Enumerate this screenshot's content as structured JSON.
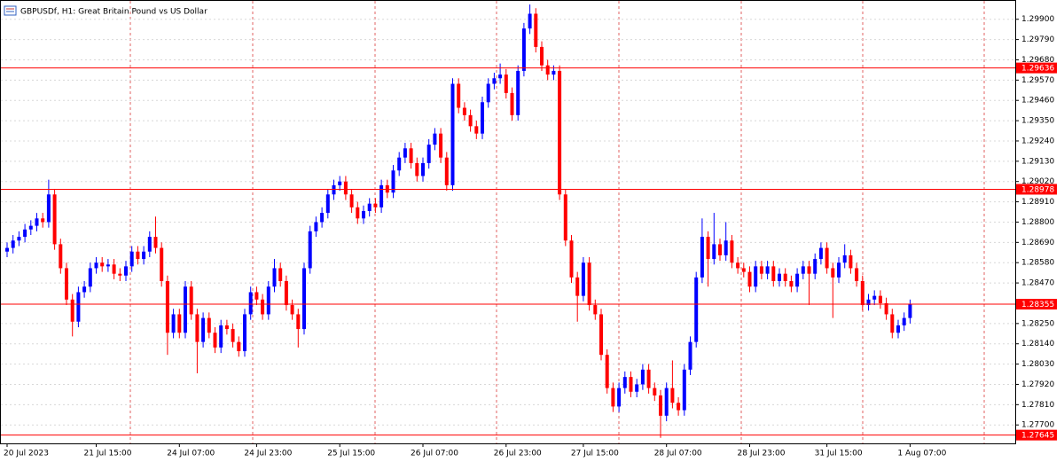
{
  "chart_data": {
    "type": "candlestick",
    "title": "GBPUSDf, H1:  Great Britain Pound vs US Dollar",
    "up_color": "#0000ff",
    "down_color": "#ff0000",
    "level_color": "#ff0000",
    "grid": true,
    "ylim": [
      1.276,
      1.2999
    ],
    "yticks": [
      {
        "value": 1.299,
        "label": "1.29900"
      },
      {
        "value": 1.2979,
        "label": "1.29790"
      },
      {
        "value": 1.2968,
        "label": "1.29680"
      },
      {
        "value": 1.2957,
        "label": "1.29570"
      },
      {
        "value": 1.2946,
        "label": "1.29460"
      },
      {
        "value": 1.2935,
        "label": "1.29350"
      },
      {
        "value": 1.2924,
        "label": "1.29240"
      },
      {
        "value": 1.2913,
        "label": "1.29130"
      },
      {
        "value": 1.2902,
        "label": "1.29020"
      },
      {
        "value": 1.2891,
        "label": "1.28910"
      },
      {
        "value": 1.288,
        "label": "1.28800"
      },
      {
        "value": 1.2869,
        "label": "1.28690"
      },
      {
        "value": 1.2858,
        "label": "1.28580"
      },
      {
        "value": 1.2847,
        "label": "1.28470"
      },
      {
        "value": 1.2825,
        "label": "1.28250"
      },
      {
        "value": 1.2814,
        "label": "1.28140"
      },
      {
        "value": 1.2803,
        "label": "1.28030"
      },
      {
        "value": 1.2792,
        "label": "1.27920"
      },
      {
        "value": 1.2781,
        "label": "1.27810"
      },
      {
        "value": 1.277,
        "label": "1.27700"
      }
    ],
    "levels": [
      1.29636,
      1.28978,
      1.28355,
      1.27645
    ],
    "categories": [
      "20 Jul 2023",
      null,
      null,
      null,
      null,
      null,
      null,
      null,
      null,
      null,
      null,
      null,
      null,
      null,
      null,
      "21 Jul 15:00",
      null,
      null,
      null,
      null,
      null,
      null,
      null,
      null,
      null,
      null,
      null,
      null,
      null,
      "24 Jul 07:00",
      null,
      null,
      null,
      null,
      null,
      null,
      null,
      null,
      null,
      null,
      null,
      null,
      "24 Jul 23:00",
      null,
      null,
      null,
      null,
      null,
      null,
      null,
      null,
      null,
      null,
      null,
      null,
      null,
      "25 Jul 15:00",
      null,
      null,
      null,
      null,
      null,
      null,
      null,
      null,
      null,
      null,
      null,
      null,
      null,
      "26 Jul 07:00",
      null,
      null,
      null,
      null,
      null,
      null,
      null,
      null,
      null,
      null,
      null,
      null,
      null,
      "26 Jul 23:00",
      null,
      null,
      null,
      null,
      null,
      null,
      null,
      null,
      null,
      null,
      null,
      null,
      "27 Jul 15:00",
      null,
      null,
      null,
      null,
      null,
      null,
      null,
      null,
      null,
      null,
      null,
      null,
      null,
      "28 Jul 07:00",
      null,
      null,
      null,
      null,
      null,
      null,
      null,
      null,
      null,
      null,
      null,
      null,
      null,
      "28 Jul 23:00",
      null,
      null,
      null,
      null,
      null,
      null,
      null,
      null,
      null,
      null,
      null,
      null,
      "31 Jul 15:00",
      null,
      null,
      null,
      null,
      null,
      null,
      null,
      null,
      null,
      null,
      null,
      null,
      null,
      "1 Aug 07:00"
    ],
    "open": [
      1.2864,
      1.2866,
      1.287,
      1.2872,
      1.2876,
      1.2878,
      1.2882,
      1.288,
      1.2895,
      1.2868,
      1.2855,
      1.2838,
      1.2826,
      1.2842,
      1.2845,
      1.2855,
      1.2858,
      1.2856,
      1.2857,
      1.2852,
      1.2851,
      1.2856,
      1.2864,
      1.286,
      1.2864,
      1.2872,
      1.2866,
      1.2848,
      1.282,
      1.283,
      1.282,
      1.2845,
      1.283,
      1.2815,
      1.2828,
      1.282,
      1.2812,
      1.2824,
      1.2822,
      1.2815,
      1.281,
      1.283,
      1.2842,
      1.2838,
      1.283,
      1.2845,
      1.2855,
      1.2848,
      1.2835,
      1.283,
      1.2822,
      1.2855,
      1.2875,
      1.288,
      1.2885,
      1.2895,
      1.29,
      1.2902,
      1.2895,
      1.2888,
      1.2882,
      1.2886,
      1.289,
      1.2888,
      1.29,
      1.2896,
      1.2908,
      1.2915,
      1.292,
      1.2912,
      1.2905,
      1.2912,
      1.2922,
      1.2928,
      1.2915,
      1.29,
      1.2955,
      1.2942,
      1.2938,
      1.2932,
      1.2928,
      1.2945,
      1.2955,
      1.2958,
      1.296,
      1.295,
      1.2938,
      1.2962,
      1.2985,
      1.2993,
      1.2975,
      1.2965,
      1.296,
      1.2962,
      1.2895,
      1.287,
      1.285,
      1.284,
      1.2858,
      1.2835,
      1.283,
      1.2808,
      1.279,
      1.278,
      1.279,
      1.2796,
      1.2788,
      1.2792,
      1.28,
      1.279,
      1.2786,
      1.2775,
      1.279,
      1.2782,
      1.2778,
      1.28,
      1.2815,
      1.285,
      1.2872,
      1.286,
      1.2868,
      1.2862,
      1.287,
      1.2858,
      1.2855,
      1.2853,
      1.2845,
      1.2856,
      1.2852,
      1.2856,
      1.2848,
      1.2852,
      1.2848,
      1.2845,
      1.2852,
      1.2856,
      1.2852,
      1.286,
      1.2866,
      1.2855,
      1.285,
      1.2858,
      1.2862,
      1.2855,
      1.2848,
      1.2835,
      1.2838,
      1.284,
      1.2836,
      1.283,
      1.282,
      1.2824,
      1.2828
    ],
    "high": [
      1.2869,
      1.2873,
      1.2875,
      1.2879,
      1.2881,
      1.2885,
      1.2885,
      1.2903,
      1.2898,
      1.2871,
      1.2858,
      1.2841,
      1.2845,
      1.2848,
      1.2858,
      1.2861,
      1.2861,
      1.286,
      1.286,
      1.2855,
      1.2859,
      1.2867,
      1.2867,
      1.2867,
      1.2875,
      1.2883,
      1.2869,
      1.2851,
      1.2833,
      1.2833,
      1.2848,
      1.2848,
      1.2833,
      1.2831,
      1.2831,
      1.2823,
      1.2827,
      1.2827,
      1.2825,
      1.2818,
      1.2833,
      1.2845,
      1.2845,
      1.2841,
      1.2848,
      1.286,
      1.2858,
      1.2851,
      1.2838,
      1.2833,
      1.2858,
      1.2878,
      1.2883,
      1.2888,
      1.2898,
      1.2903,
      1.2905,
      1.2905,
      1.2898,
      1.2891,
      1.2889,
      1.2893,
      1.2893,
      1.2903,
      1.2903,
      1.2911,
      1.2918,
      1.2923,
      1.2923,
      1.2915,
      1.2915,
      1.2925,
      1.2931,
      1.2931,
      1.2918,
      1.2958,
      1.2958,
      1.2945,
      1.2941,
      1.2935,
      1.2948,
      1.2958,
      1.2961,
      1.2966,
      1.2963,
      1.2953,
      1.2965,
      1.2988,
      1.2998,
      1.2996,
      1.2978,
      1.2968,
      1.2965,
      1.2965,
      1.2898,
      1.2873,
      1.2853,
      1.2861,
      1.2861,
      1.2838,
      1.2833,
      1.2811,
      1.2793,
      1.2793,
      1.2799,
      1.2799,
      1.2795,
      1.2803,
      1.2803,
      1.2793,
      1.2789,
      1.2793,
      1.2805,
      1.2785,
      1.2803,
      1.2818,
      1.2853,
      1.2882,
      1.2875,
      1.2885,
      1.2871,
      1.288,
      1.2873,
      1.2861,
      1.2858,
      1.2856,
      1.2859,
      1.2859,
      1.2859,
      1.2859,
      1.2855,
      1.2855,
      1.2851,
      1.2855,
      1.2859,
      1.2859,
      1.2863,
      1.2869,
      1.2869,
      1.2858,
      1.2861,
      1.2868,
      1.2865,
      1.2858,
      1.2851,
      1.2841,
      1.2843,
      1.2843,
      1.2839,
      1.2833,
      1.2827,
      1.2831,
      1.2838
    ],
    "low": [
      1.2861,
      1.2863,
      1.2867,
      1.2869,
      1.2873,
      1.2875,
      1.2877,
      1.2877,
      1.2865,
      1.2852,
      1.2835,
      1.2818,
      1.2823,
      1.2839,
      1.2842,
      1.2852,
      1.2853,
      1.2853,
      1.2849,
      1.2848,
      1.2848,
      1.2853,
      1.2857,
      1.2857,
      1.2861,
      1.2863,
      1.2845,
      1.2808,
      1.2817,
      1.2817,
      1.2817,
      1.2827,
      1.2798,
      1.2812,
      1.2817,
      1.2809,
      1.2809,
      1.2819,
      1.2812,
      1.2807,
      1.2807,
      1.2827,
      1.2835,
      1.2827,
      1.2827,
      1.2842,
      1.2845,
      1.2832,
      1.2827,
      1.2812,
      1.2819,
      1.2852,
      1.2872,
      1.2877,
      1.2882,
      1.2892,
      1.2897,
      1.2892,
      1.2885,
      1.2879,
      1.2879,
      1.2883,
      1.2885,
      1.2885,
      1.2893,
      1.2893,
      1.2905,
      1.2912,
      1.2909,
      1.2902,
      1.2902,
      1.2909,
      1.2919,
      1.2912,
      1.2897,
      1.2897,
      1.2939,
      1.2935,
      1.2929,
      1.2925,
      1.2925,
      1.2942,
      1.2952,
      1.2955,
      1.2947,
      1.2935,
      1.2935,
      1.2959,
      1.2982,
      1.2972,
      1.2962,
      1.2957,
      1.2957,
      1.2892,
      1.2867,
      1.2847,
      1.2826,
      1.2837,
      1.2832,
      1.2827,
      1.2805,
      1.2787,
      1.2777,
      1.2777,
      1.2787,
      1.2785,
      1.2785,
      1.2789,
      1.2787,
      1.2783,
      1.2763,
      1.2772,
      1.2779,
      1.2775,
      1.2775,
      1.2797,
      1.2812,
      1.2847,
      1.2845,
      1.2857,
      1.2859,
      1.2859,
      1.2855,
      1.2852,
      1.285,
      1.2842,
      1.2842,
      1.2849,
      1.2849,
      1.2845,
      1.2845,
      1.2845,
      1.2842,
      1.2842,
      1.2849,
      1.2835,
      1.2849,
      1.2857,
      1.2852,
      1.2828,
      1.2847,
      1.2855,
      1.2852,
      1.2845,
      1.2832,
      1.2832,
      1.2835,
      1.2833,
      1.2827,
      1.2817,
      1.2817,
      1.2821,
      1.2825
    ],
    "close": [
      1.2866,
      1.287,
      1.2872,
      1.2876,
      1.2878,
      1.2882,
      1.288,
      1.2895,
      1.2868,
      1.2855,
      1.2838,
      1.2826,
      1.2842,
      1.2845,
      1.2855,
      1.2858,
      1.2856,
      1.2857,
      1.2852,
      1.2851,
      1.2856,
      1.2864,
      1.286,
      1.2864,
      1.2872,
      1.2866,
      1.2848,
      1.282,
      1.283,
      1.282,
      1.2845,
      1.283,
      1.2815,
      1.2828,
      1.282,
      1.2812,
      1.2824,
      1.2822,
      1.2815,
      1.281,
      1.283,
      1.2842,
      1.2838,
      1.283,
      1.2845,
      1.2855,
      1.2848,
      1.2835,
      1.283,
      1.2822,
      1.2855,
      1.2875,
      1.288,
      1.2885,
      1.2895,
      1.29,
      1.2902,
      1.2895,
      1.2888,
      1.2882,
      1.2886,
      1.289,
      1.2888,
      1.29,
      1.2896,
      1.2908,
      1.2915,
      1.292,
      1.2912,
      1.2905,
      1.2912,
      1.2922,
      1.2928,
      1.2915,
      1.29,
      1.2955,
      1.2942,
      1.2938,
      1.2932,
      1.2928,
      1.2945,
      1.2955,
      1.2958,
      1.296,
      1.295,
      1.2938,
      1.2962,
      1.2985,
      1.2993,
      1.2975,
      1.2965,
      1.296,
      1.2962,
      1.2895,
      1.287,
      1.285,
      1.284,
      1.2858,
      1.2835,
      1.283,
      1.2808,
      1.279,
      1.278,
      1.279,
      1.2796,
      1.2788,
      1.2792,
      1.28,
      1.279,
      1.2786,
      1.2775,
      1.279,
      1.2782,
      1.2778,
      1.28,
      1.2815,
      1.285,
      1.2872,
      1.286,
      1.2868,
      1.2862,
      1.287,
      1.2858,
      1.2855,
      1.2853,
      1.2845,
      1.2856,
      1.2852,
      1.2856,
      1.2848,
      1.2852,
      1.2848,
      1.2845,
      1.2852,
      1.2856,
      1.2852,
      1.286,
      1.2866,
      1.2855,
      1.285,
      1.2858,
      1.2862,
      1.2855,
      1.2848,
      1.2835,
      1.2838,
      1.284,
      1.2836,
      1.283,
      1.282,
      1.2824,
      1.2828,
      1.28355
    ]
  }
}
